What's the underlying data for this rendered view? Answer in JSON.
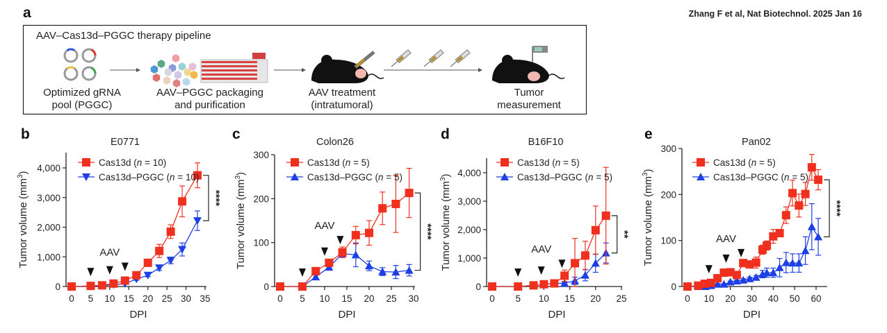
{
  "citation": "Zhang F et al, Nat Biotechnol. 2025 Jan 16",
  "panel_a": {
    "letter": "a",
    "title": "AAV–Cas13d–PGGC therapy pipeline",
    "steps": [
      {
        "line1": "Optimized gRNA",
        "line2": "pool (PGGC)"
      },
      {
        "line1": "AAV–PGGC packaging",
        "line2": "and purification"
      },
      {
        "line1": "AAV treatment",
        "line2": "(intratumoral)"
      },
      {
        "line1": "Tumor",
        "line2": "measurement"
      }
    ],
    "plasmid_colors": [
      "#2e5bd8",
      "#d63a30",
      "#e8c43a",
      "#3fa34a"
    ]
  },
  "colors": {
    "cas13d": "#f0301e",
    "pggc": "#1d3fe6",
    "marker": "#111111"
  },
  "chart_data": [
    {
      "type": "line",
      "letter": "b",
      "title": "E0771",
      "xlabel": "DPI",
      "ylabel": "Tumor volume (mm3)",
      "xlim": [
        0,
        35
      ],
      "ylim": [
        0,
        4500
      ],
      "xticks": [
        0,
        5,
        10,
        15,
        20,
        25,
        30,
        35
      ],
      "yticks": [
        0,
        1000,
        2000,
        3000,
        4000
      ],
      "ytick_labels": [
        "0",
        "1,000",
        "2,000",
        "3,000",
        "4,000"
      ],
      "aav_label": "AAV",
      "aav_days": [
        5,
        10,
        14
      ],
      "significance": "****",
      "x": [
        0,
        5,
        8,
        11,
        14,
        17,
        20,
        23,
        26,
        29,
        33
      ],
      "series": [
        {
          "name": "Cas13d (n = 10)",
          "marker": "square",
          "color": "#f0301e",
          "values": [
            0,
            20,
            40,
            100,
            200,
            380,
            800,
            1200,
            1850,
            2870,
            3750
          ],
          "errors": [
            0,
            10,
            15,
            30,
            50,
            70,
            90,
            220,
            230,
            520,
            420
          ]
        },
        {
          "name": "Cas13d–PGGC (n = 10)",
          "marker": "triangle-down",
          "color": "#1d3fe6",
          "values": [
            0,
            15,
            30,
            60,
            100,
            250,
            380,
            630,
            880,
            1250,
            2220
          ],
          "errors": [
            0,
            5,
            10,
            15,
            20,
            40,
            50,
            90,
            110,
            220,
            330
          ]
        }
      ]
    },
    {
      "type": "line",
      "letter": "c",
      "title": "Colon26",
      "xlabel": "DPI",
      "ylabel": "Tumor volume (mm3)",
      "xlim": [
        0,
        30
      ],
      "ylim": [
        0,
        300
      ],
      "xticks": [
        0,
        5,
        10,
        15,
        20,
        25,
        30
      ],
      "yticks": [
        0,
        100,
        200,
        300
      ],
      "ytick_labels": [
        "0",
        "100",
        "200",
        "300"
      ],
      "aav_label": "AAV",
      "aav_days": [
        5,
        10,
        13.5
      ],
      "significance": "****",
      "x": [
        0,
        5,
        8,
        11,
        14,
        17,
        20,
        23,
        26,
        29
      ],
      "series": [
        {
          "name": "Cas13d (n = 5)",
          "marker": "square",
          "color": "#f0301e",
          "values": [
            0,
            0,
            35,
            54,
            78,
            117,
            122,
            178,
            188,
            213
          ],
          "errors": [
            0,
            0,
            8,
            5,
            12,
            20,
            28,
            37,
            65,
            56
          ]
        },
        {
          "name": "Cas13d–PGGC (n = 5)",
          "marker": "triangle",
          "color": "#1d3fe6",
          "values": [
            0,
            0,
            22,
            44,
            75,
            72,
            47,
            34,
            33,
            37
          ],
          "errors": [
            0,
            0,
            4,
            5,
            9,
            27,
            11,
            9,
            15,
            13
          ]
        }
      ]
    },
    {
      "type": "line",
      "letter": "d",
      "title": "B16F10",
      "xlabel": "DPI",
      "ylabel": "Tumor volume (mm3)",
      "xlim": [
        0,
        25
      ],
      "ylim": [
        0,
        4500
      ],
      "xticks": [
        0,
        5,
        10,
        15,
        20,
        25
      ],
      "yticks": [
        0,
        1000,
        2000,
        3000,
        4000
      ],
      "ytick_labels": [
        "0",
        "1,000",
        "2,000",
        "3,000",
        "4,000"
      ],
      "aav_label": "AAV",
      "aav_days": [
        5,
        9.5,
        13.5
      ],
      "significance": "**",
      "x": [
        0,
        5,
        8,
        10,
        12,
        14,
        16,
        18,
        20,
        22
      ],
      "series": [
        {
          "name": "Cas13d (n = 5)",
          "marker": "square",
          "color": "#f0301e",
          "values": [
            0,
            0,
            40,
            80,
            110,
            380,
            820,
            1090,
            1980,
            2490
          ],
          "errors": [
            0,
            0,
            10,
            20,
            30,
            200,
            870,
            500,
            850,
            1700
          ]
        },
        {
          "name": "Cas13d–PGGC (n = 5)",
          "marker": "triangle",
          "color": "#1d3fe6",
          "values": [
            0,
            0,
            40,
            80,
            100,
            120,
            200,
            400,
            820,
            1180
          ],
          "errors": [
            0,
            0,
            10,
            15,
            20,
            30,
            130,
            200,
            320,
            350
          ]
        }
      ]
    },
    {
      "type": "line",
      "letter": "e",
      "title": "Pan02",
      "xlabel": "DPI",
      "ylabel": "Tumor volume (mm3)",
      "xlim": [
        0,
        65
      ],
      "ylim": [
        0,
        300
      ],
      "xticks": [
        0,
        10,
        20,
        30,
        40,
        50,
        60
      ],
      "yticks": [
        0,
        100,
        200,
        300
      ],
      "ytick_labels": [
        "0",
        "100",
        "200",
        "300"
      ],
      "aav_label": "AAV",
      "aav_days": [
        10,
        18,
        25
      ],
      "significance": "****",
      "x": [
        0,
        5,
        8,
        11,
        14,
        17,
        20,
        23,
        26,
        29,
        32,
        35,
        37,
        40,
        43,
        46,
        49,
        52,
        55,
        58,
        61
      ],
      "series": [
        {
          "name": "Cas13d (n = 5)",
          "marker": "square",
          "color": "#f0301e",
          "values": [
            0,
            2,
            6,
            8,
            18,
            30,
            31,
            25,
            51,
            48,
            52,
            80,
            89,
            109,
            116,
            155,
            203,
            176,
            201,
            259,
            232
          ],
          "errors": [
            0,
            1,
            2,
            3,
            4,
            8,
            5,
            4,
            5,
            6,
            12,
            10,
            10,
            15,
            8,
            18,
            28,
            25,
            25,
            28,
            22
          ]
        },
        {
          "name": "Cas13d–PGGC (n = 5)",
          "marker": "triangle",
          "color": "#1d3fe6",
          "values": [
            0,
            0,
            0,
            2,
            5,
            5,
            10,
            12,
            14,
            17,
            20,
            27,
            30,
            30,
            41,
            52,
            51,
            51,
            78,
            130,
            108
          ],
          "errors": [
            0,
            0,
            0,
            1,
            1,
            1,
            2,
            2,
            3,
            3,
            4,
            8,
            10,
            10,
            20,
            22,
            20,
            20,
            30,
            50,
            40
          ]
        }
      ]
    }
  ]
}
